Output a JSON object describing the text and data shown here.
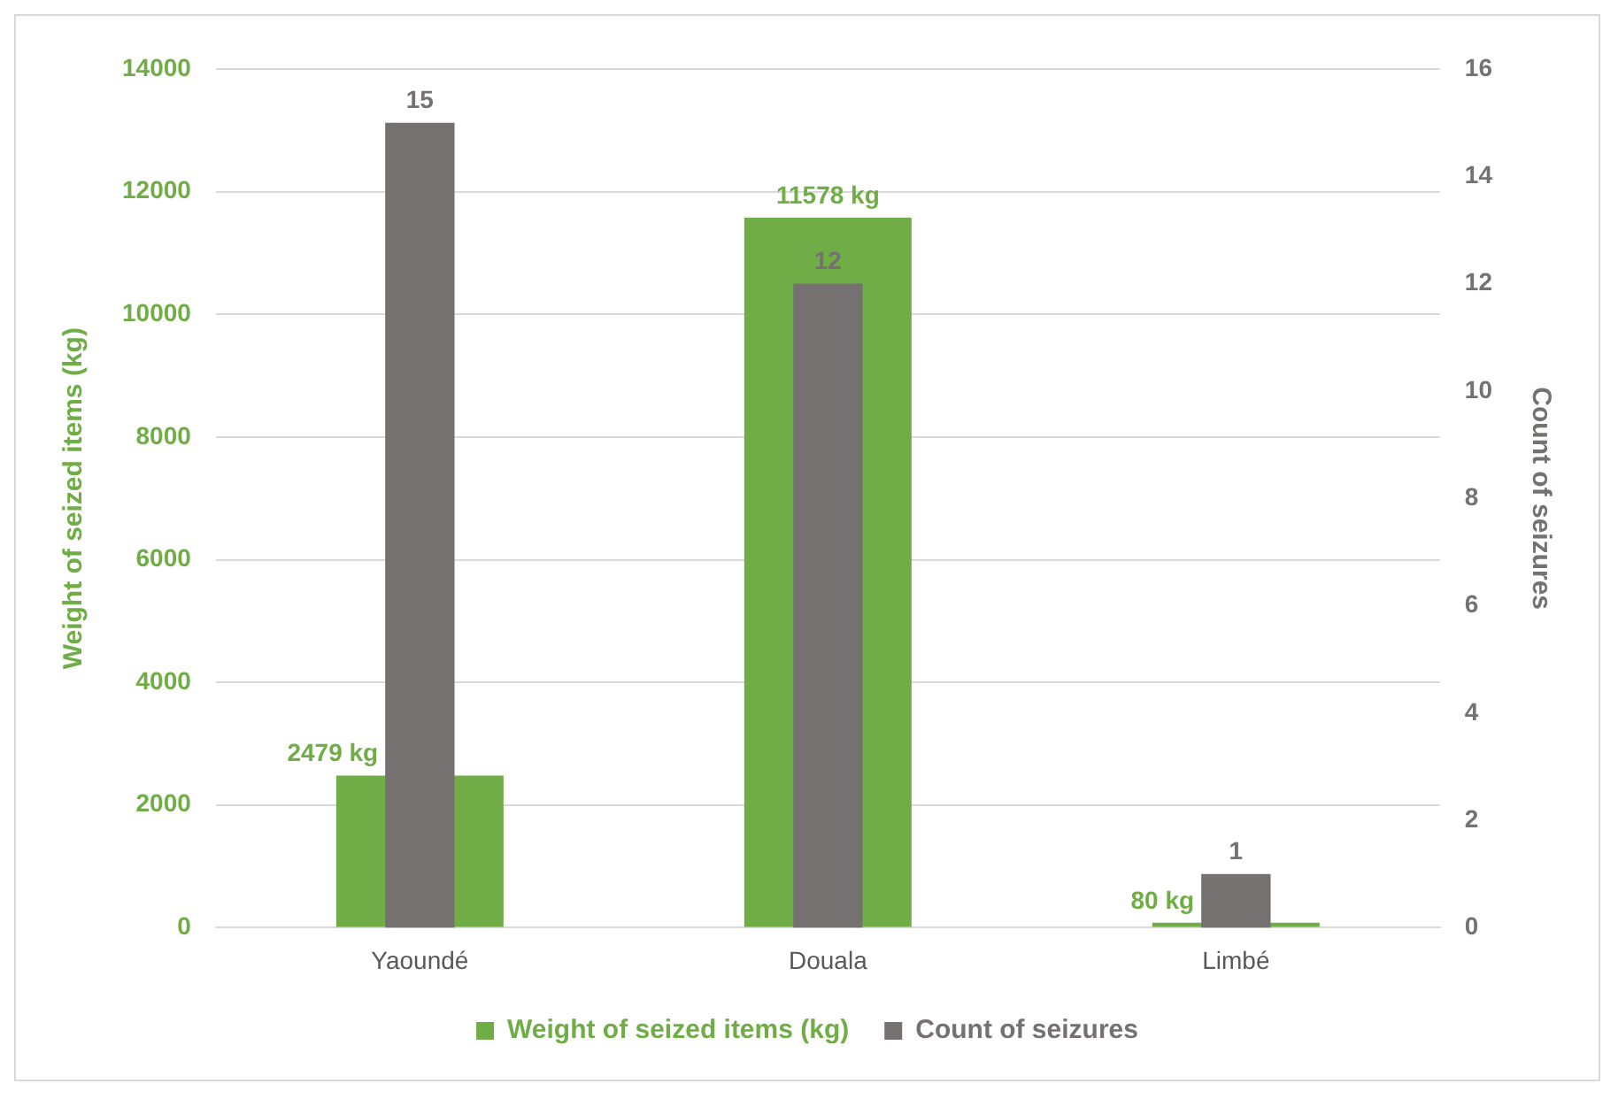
{
  "chart_data": {
    "type": "bar",
    "categories": [
      "Yaoundé",
      "Douala",
      "Limbé"
    ],
    "ylabel": "Weight of seized items (kg)",
    "y2label": "Count of seizures",
    "series": [
      {
        "name": "Weight of seized items (kg)",
        "color": "#70ad47",
        "values": [
          2479,
          11578,
          80
        ],
        "value_labels": [
          "2479 kg",
          "11578 kg",
          "80 kg"
        ]
      },
      {
        "name": "Count of seizures",
        "color": "#767171",
        "values": [
          15,
          12,
          1
        ],
        "axis": "y2",
        "value_labels": [
          "15",
          "12",
          "1"
        ]
      }
    ],
    "ylim": [
      0,
      14000
    ],
    "yticks": [
      0,
      2000,
      4000,
      6000,
      8000,
      10000,
      12000,
      14000
    ],
    "y2lim": [
      0,
      16
    ],
    "y2ticks": [
      0,
      2,
      4,
      6,
      8,
      10,
      12,
      14,
      16
    ],
    "grid": "y",
    "legend": "bottom"
  }
}
